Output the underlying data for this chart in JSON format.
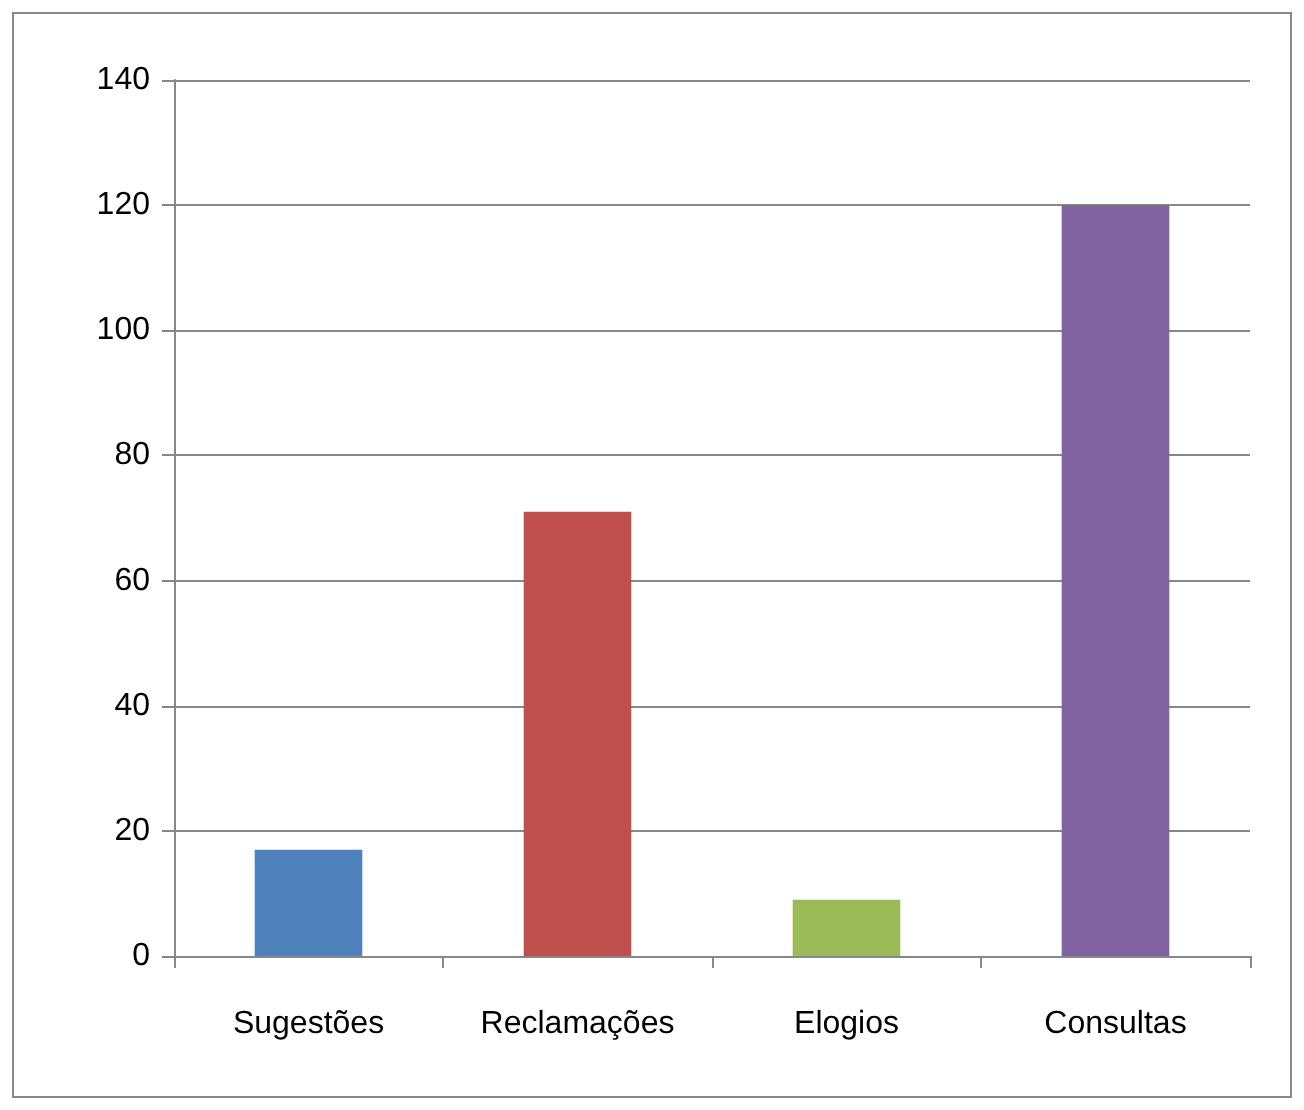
{
  "chart_data": {
    "type": "bar",
    "categories": [
      "Sugestões",
      "Reclamações",
      "Elogios",
      "Consultas"
    ],
    "values": [
      17,
      71,
      9,
      120
    ],
    "colors": [
      "#4f81bd",
      "#c0504d",
      "#9bbb59",
      "#8064a2"
    ],
    "ylim": [
      0,
      140
    ],
    "yticks": [
      0,
      20,
      40,
      60,
      80,
      100,
      120,
      140
    ],
    "grid": "y"
  }
}
